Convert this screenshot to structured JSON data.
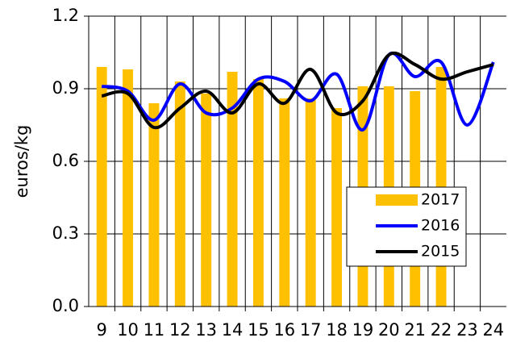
{
  "chart_data": {
    "type": "bar",
    "y_label": "euros/kg",
    "categories": [
      "9",
      "10",
      "11",
      "12",
      "13",
      "14",
      "15",
      "16",
      "17",
      "18",
      "19",
      "20",
      "21",
      "22",
      "23",
      "24"
    ],
    "series": [
      {
        "name": "2017",
        "type": "bar",
        "color": "#ffc000",
        "values": [
          0.99,
          0.98,
          0.84,
          0.93,
          0.88,
          0.97,
          0.94,
          0.86,
          0.86,
          0.82,
          0.91,
          0.91,
          0.89,
          0.99,
          null,
          null
        ]
      },
      {
        "name": "2016",
        "type": "line",
        "color": "#0000ff",
        "values": [
          0.91,
          0.89,
          0.77,
          0.92,
          0.8,
          0.82,
          0.94,
          0.93,
          0.85,
          0.96,
          0.73,
          1.04,
          0.95,
          1.01,
          0.75,
          1.01
        ]
      },
      {
        "name": "2015",
        "type": "line",
        "color": "#000000",
        "values": [
          0.87,
          0.88,
          0.74,
          0.82,
          0.89,
          0.8,
          0.92,
          0.84,
          0.98,
          0.8,
          0.85,
          1.04,
          1.0,
          0.94,
          0.97,
          1.0
        ]
      }
    ],
    "ylim": [
      0,
      1.2
    ],
    "yticks": [
      {
        "value": 0,
        "label": "0.0"
      },
      0.3,
      0.6,
      0.9,
      1.2
    ],
    "grid": true,
    "legend": "lower right"
  }
}
